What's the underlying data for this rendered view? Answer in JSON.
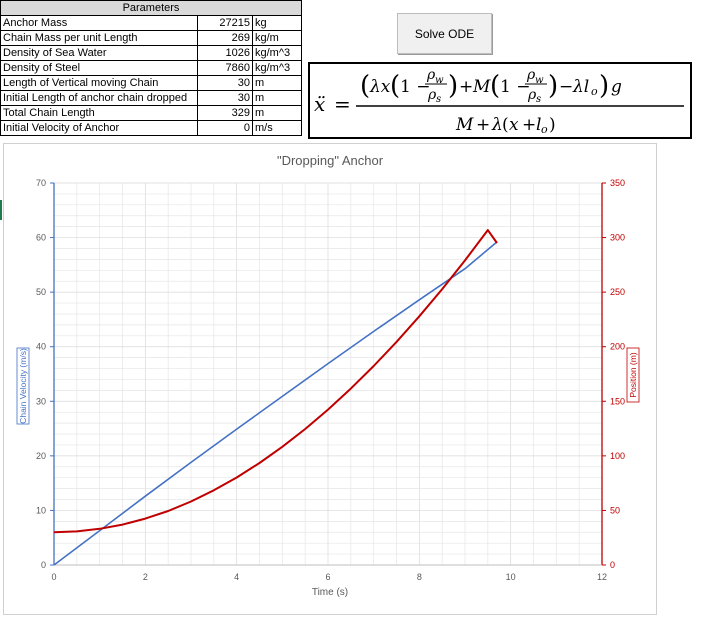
{
  "params": {
    "title": "Parameters",
    "rows": [
      {
        "label": "Anchor Mass",
        "value": "27215",
        "unit": "kg"
      },
      {
        "label": "Chain Mass per unit Length",
        "value": "269",
        "unit": "kg/m"
      },
      {
        "label": "Density of Sea Water",
        "value": "1026",
        "unit": "kg/m^3"
      },
      {
        "label": "Density of Steel",
        "value": "7860",
        "unit": "kg/m^3"
      },
      {
        "label": "Length of Vertical moving Chain",
        "value": "30",
        "unit": "m"
      },
      {
        "label": "Initial Length of anchor chain dropped",
        "value": "30",
        "unit": "m"
      },
      {
        "label": "Total Chain Length",
        "value": "329",
        "unit": "m"
      },
      {
        "label": "Initial Velocity of Anchor",
        "value": "0",
        "unit": "m/s"
      }
    ]
  },
  "button": {
    "label": "Solve ODE"
  },
  "equation": {
    "label": "ẍ = ((λx(1 − ρw/ρs) + M(1 − ρw/ρs) − λlo) g) / (M + λ(x + lo))"
  },
  "colors": {
    "velocity": "#4472c4",
    "position": "#c00000",
    "grid": "#e6e6e6",
    "axis_text": "#595959"
  },
  "chart_data": {
    "type": "line",
    "title": "\"Dropping\" Anchor",
    "xlabel": "Time (s)",
    "ylabel": "Chain Velocity (m/s)",
    "y2label": "Position (m)",
    "xlim": [
      0,
      12
    ],
    "ylim": [
      0,
      70
    ],
    "y2lim": [
      0,
      350
    ],
    "xticks": [
      0,
      2,
      4,
      6,
      8,
      10,
      12
    ],
    "yticks": [
      0,
      10,
      20,
      30,
      40,
      50,
      60,
      70
    ],
    "y2ticks": [
      0,
      50,
      100,
      150,
      200,
      250,
      300,
      350
    ],
    "grid": true,
    "series": [
      {
        "name": "Chain Velocity (m/s)",
        "axis": "left",
        "x": [
          0,
          1,
          2,
          3,
          4,
          5,
          6,
          7,
          8,
          9,
          9.7
        ],
        "values": [
          0,
          6.3,
          12.6,
          18.8,
          24.9,
          30.9,
          36.9,
          42.8,
          48.6,
          54.3,
          59.2
        ]
      },
      {
        "name": "Position (m)",
        "axis": "right",
        "x": [
          0,
          0.5,
          1,
          1.5,
          2,
          2.5,
          3,
          3.5,
          4,
          4.5,
          5,
          5.5,
          6,
          6.5,
          7,
          7.5,
          8,
          8.5,
          9,
          9.5,
          9.7
        ],
        "values": [
          30,
          30.8,
          33.2,
          37,
          42.5,
          49.5,
          58.2,
          68.4,
          80.2,
          93.5,
          108.3,
          124.6,
          142.4,
          161.6,
          182.3,
          204.4,
          227.9,
          252.8,
          279.1,
          306.8,
          295
        ]
      }
    ]
  }
}
